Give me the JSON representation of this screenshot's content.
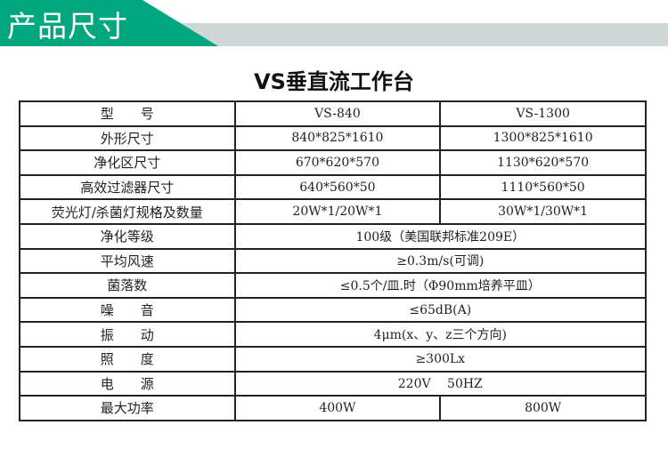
{
  "banner": {
    "title": "产品尺寸",
    "accent": "#02a77f",
    "bar": "#cfd8d6"
  },
  "title": "VS垂直流工作台",
  "rows": [
    {
      "label": "型　　号",
      "v1": "VS-840",
      "v2": "VS-1300"
    },
    {
      "label": "外形尺寸",
      "v1": "840*825*1610",
      "v2": "1300*825*1610"
    },
    {
      "label": "净化区尺寸",
      "v1": "670*620*570",
      "v2": "1130*620*570"
    },
    {
      "label": "高效过滤器尺寸",
      "v1": "640*560*50",
      "v2": "1110*560*50"
    },
    {
      "label": "荧光灯/杀菌灯规格及数量",
      "v1": "20W*1/20W*1",
      "v2": "30W*1/30W*1"
    },
    {
      "label": "净化等级",
      "v": "100级（美国联邦标准209E）"
    },
    {
      "label": "平均风速",
      "v": "≥0.3m/s(可调)"
    },
    {
      "label": "菌落数",
      "v": "≤0.5个/皿.时（Φ90mm培养平皿）"
    },
    {
      "label": "噪　　音",
      "v": "≤65dB(A)"
    },
    {
      "label": "振　　动",
      "v": "4μm(x、y、z三个方向)"
    },
    {
      "label": "照　　度",
      "v": "≥300Lx"
    },
    {
      "label": "电　　源",
      "v": "220V　 50HZ"
    },
    {
      "label": "最大功率",
      "v1": "400W",
      "v2": "800W"
    }
  ]
}
